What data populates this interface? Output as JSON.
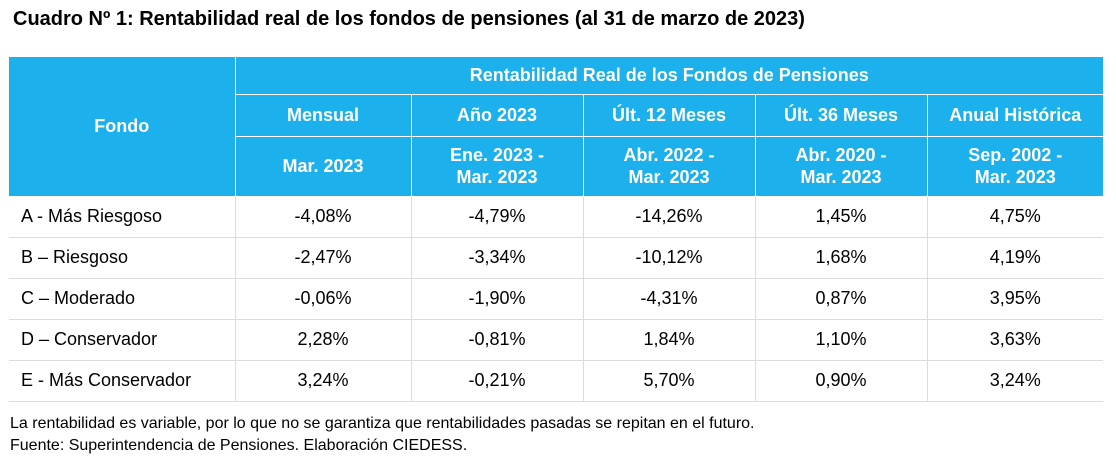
{
  "title": "Cuadro Nº 1: Rentabilidad real de los fondos de pensiones (al 31 de marzo de 2023)",
  "table": {
    "fondo_header": "Fondo",
    "group_header": "Rentabilidad Real de los Fondos de Pensiones",
    "columns": [
      {
        "label": "Mensual",
        "period": "Mar. 2023"
      },
      {
        "label": "Año 2023",
        "period": "Ene. 2023 -\nMar. 2023"
      },
      {
        "label": "Últ. 12 Meses",
        "period": "Abr. 2022 -\nMar. 2023"
      },
      {
        "label": "Últ. 36 Meses",
        "period": "Abr. 2020 -\nMar. 2023"
      },
      {
        "label": "Anual Histórica",
        "period": "Sep. 2002 -\nMar. 2023"
      }
    ],
    "rows": [
      {
        "fondo": "A - Más Riesgoso",
        "values": [
          "-4,08%",
          "-4,79%",
          "-14,26%",
          "1,45%",
          "4,75%"
        ]
      },
      {
        "fondo": "B – Riesgoso",
        "values": [
          "-2,47%",
          "-3,34%",
          "-10,12%",
          "1,68%",
          "4,19%"
        ]
      },
      {
        "fondo": "C – Moderado",
        "values": [
          "-0,06%",
          "-1,90%",
          "-4,31%",
          "0,87%",
          "3,95%"
        ]
      },
      {
        "fondo": "D – Conservador",
        "values": [
          "2,28%",
          "-0,81%",
          "1,84%",
          "1,10%",
          "3,63%"
        ]
      },
      {
        "fondo": "E - Más Conservador",
        "values": [
          "3,24%",
          "-0,21%",
          "5,70%",
          "0,90%",
          "3,24%"
        ]
      }
    ]
  },
  "notes": {
    "line1": "La rentabilidad es variable, por lo que no se garantiza que rentabilidades pasadas se repitan en el futuro.",
    "line2": "Fuente: Superintendencia de Pensiones. Elaboración CIEDESS."
  },
  "colors": {
    "header_bg": "#1CB0EC",
    "header_text": "#FFFFFF",
    "grid": "#DCDCDC"
  }
}
